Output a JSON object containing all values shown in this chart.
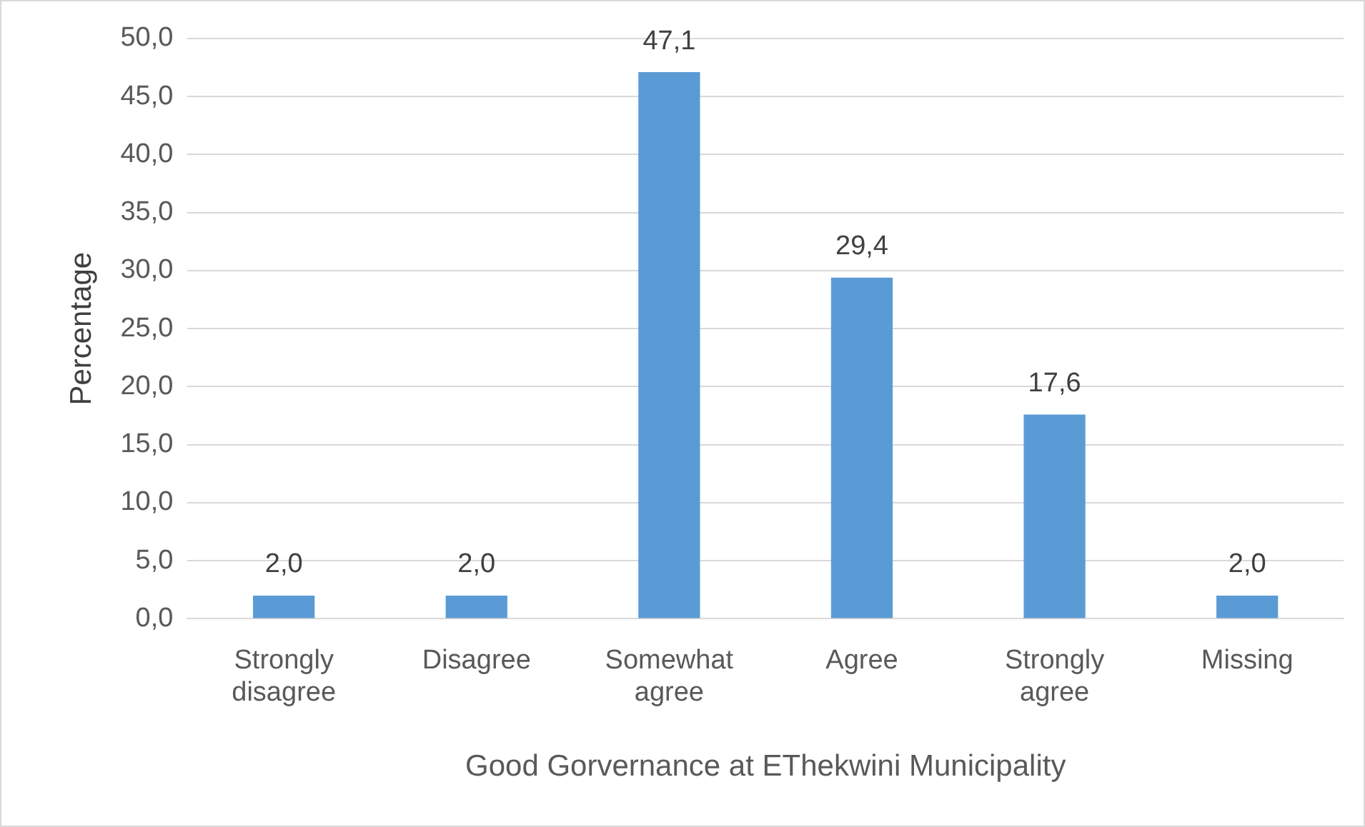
{
  "chart_data": {
    "type": "bar",
    "xlabel": "Good Gorvernance at EThekwini Municipality",
    "ylabel": "Percentage",
    "categories": [
      "Strongly disagree",
      "Disagree",
      "Somewhat agree",
      "Agree",
      "Strongly agree",
      "Missing"
    ],
    "values": [
      2.0,
      2.0,
      47.1,
      29.4,
      17.6,
      2.0
    ],
    "value_labels": [
      "2,0",
      "2,0",
      "47,1",
      "29,4",
      "17,6",
      "2,0"
    ],
    "color": "#5b9bd5",
    "ylim": [
      0,
      50
    ],
    "yticks": [
      {
        "value": 0,
        "label": "0,0"
      },
      {
        "value": 5,
        "label": "5,0"
      },
      {
        "value": 10,
        "label": "10,0"
      },
      {
        "value": 15,
        "label": "15,0"
      },
      {
        "value": 20,
        "label": "20,0"
      },
      {
        "value": 25,
        "label": "25,0"
      },
      {
        "value": 30,
        "label": "30,0"
      },
      {
        "value": 35,
        "label": "35,0"
      },
      {
        "value": 40,
        "label": "40,0"
      },
      {
        "value": 45,
        "label": "45,0"
      },
      {
        "value": 50,
        "label": "50,0"
      }
    ],
    "grid": "y"
  }
}
